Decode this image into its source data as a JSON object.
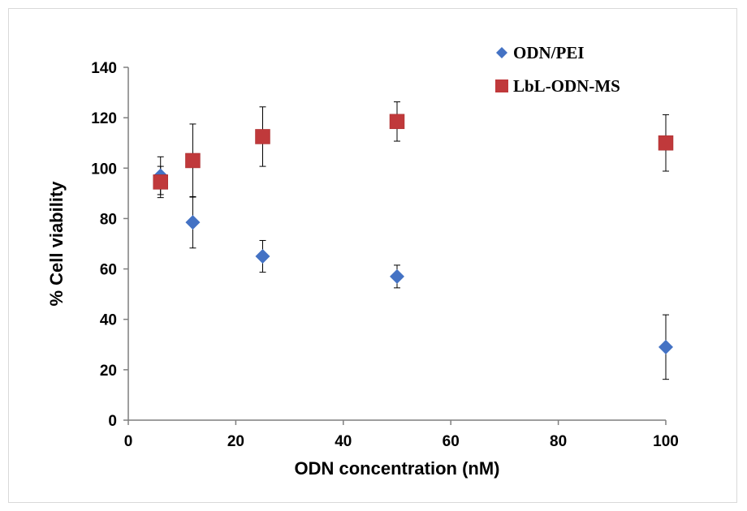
{
  "chart_data": {
    "type": "scatter",
    "title": "",
    "xlabel": "ODN concentration (nM)",
    "ylabel": "% Cell viability",
    "xlim": [
      0,
      100
    ],
    "ylim": [
      0,
      140
    ],
    "xticks": [
      0,
      20,
      40,
      60,
      80,
      100
    ],
    "yticks": [
      0,
      20,
      40,
      60,
      80,
      100,
      120,
      140
    ],
    "grid": false,
    "legend_position": "top-right",
    "series": [
      {
        "name": "ODN/PEI",
        "marker": "diamond",
        "color": "#4472C4",
        "points": [
          {
            "x": 6,
            "y": 97,
            "err": 7.5
          },
          {
            "x": 12,
            "y": 78.5,
            "err": 10.2
          },
          {
            "x": 25,
            "y": 65,
            "err": 6.3
          },
          {
            "x": 50,
            "y": 57,
            "err": 4.5
          },
          {
            "x": 100,
            "y": 29,
            "err": 12.8
          }
        ]
      },
      {
        "name": "LbL-ODN-MS",
        "marker": "square",
        "color": "#C0393B",
        "points": [
          {
            "x": 6,
            "y": 94.5,
            "err": 6.2
          },
          {
            "x": 12,
            "y": 103,
            "err": 14.5
          },
          {
            "x": 25,
            "y": 112.5,
            "err": 11.8
          },
          {
            "x": 50,
            "y": 118.5,
            "err": 7.8
          },
          {
            "x": 100,
            "y": 110,
            "err": 11.2
          }
        ]
      }
    ]
  }
}
